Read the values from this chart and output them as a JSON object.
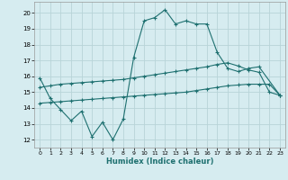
{
  "xlabel": "Humidex (Indice chaleur)",
  "xlim": [
    -0.5,
    23.5
  ],
  "ylim": [
    11.5,
    20.7
  ],
  "yticks": [
    12,
    13,
    14,
    15,
    16,
    17,
    18,
    19,
    20
  ],
  "xticks": [
    0,
    1,
    2,
    3,
    4,
    5,
    6,
    7,
    8,
    9,
    10,
    11,
    12,
    13,
    14,
    15,
    16,
    17,
    18,
    19,
    20,
    21,
    22,
    23
  ],
  "bg_color": "#d6ecf0",
  "grid_color": "#b8d4d8",
  "line_color": "#1e7070",
  "line1_x": [
    0,
    1,
    2,
    3,
    4,
    5,
    6,
    7,
    8,
    9,
    10,
    11,
    12,
    13,
    14,
    15,
    16,
    17,
    18,
    19,
    20,
    21,
    23
  ],
  "line1_y": [
    15.9,
    14.6,
    13.9,
    13.2,
    13.8,
    12.2,
    13.1,
    12.0,
    13.3,
    17.2,
    19.5,
    19.7,
    20.2,
    19.3,
    19.5,
    19.3,
    19.3,
    17.5,
    16.5,
    16.3,
    16.5,
    16.6,
    14.8
  ],
  "line2_x": [
    0,
    1,
    2,
    3,
    4,
    5,
    6,
    7,
    8,
    9,
    10,
    11,
    12,
    13,
    14,
    15,
    16,
    17,
    18,
    19,
    20,
    21,
    22,
    23
  ],
  "line2_y": [
    15.3,
    15.4,
    15.5,
    15.55,
    15.6,
    15.65,
    15.7,
    15.75,
    15.8,
    15.9,
    16.0,
    16.1,
    16.2,
    16.3,
    16.4,
    16.5,
    16.6,
    16.75,
    16.85,
    16.65,
    16.4,
    16.25,
    15.0,
    14.8
  ],
  "line3_x": [
    0,
    1,
    2,
    3,
    4,
    5,
    6,
    7,
    8,
    9,
    10,
    11,
    12,
    13,
    14,
    15,
    16,
    17,
    18,
    19,
    20,
    21,
    22,
    23
  ],
  "line3_y": [
    14.3,
    14.35,
    14.4,
    14.45,
    14.5,
    14.55,
    14.6,
    14.65,
    14.7,
    14.75,
    14.8,
    14.85,
    14.9,
    14.95,
    15.0,
    15.1,
    15.2,
    15.3,
    15.4,
    15.45,
    15.5,
    15.5,
    15.5,
    14.8
  ]
}
